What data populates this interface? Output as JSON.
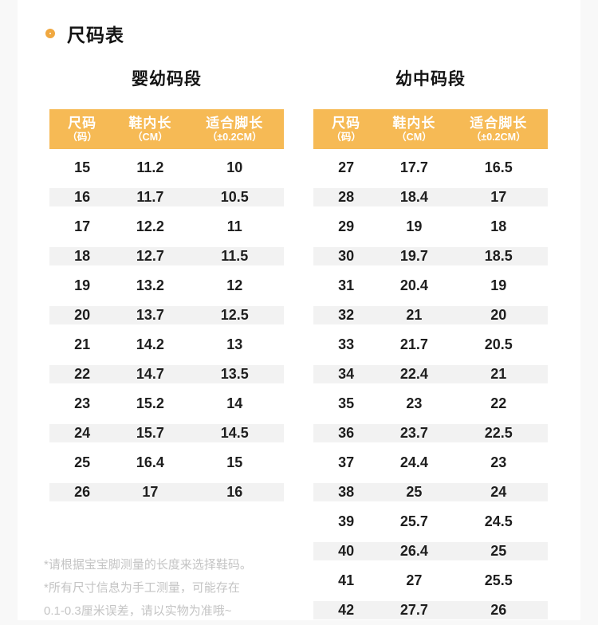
{
  "header": {
    "title": "尺码表"
  },
  "tables": [
    {
      "title": "婴幼码段",
      "columns": [
        {
          "label": "尺码",
          "sub": "（码）"
        },
        {
          "label": "鞋内长",
          "sub": "（CM）"
        },
        {
          "label": "适合脚长",
          "sub": "（±0.2CM）"
        }
      ],
      "rows": [
        [
          "15",
          "11.2",
          "10"
        ],
        [
          "16",
          "11.7",
          "10.5"
        ],
        [
          "17",
          "12.2",
          "11"
        ],
        [
          "18",
          "12.7",
          "11.5"
        ],
        [
          "19",
          "13.2",
          "12"
        ],
        [
          "20",
          "13.7",
          "12.5"
        ],
        [
          "21",
          "14.2",
          "13"
        ],
        [
          "22",
          "14.7",
          "13.5"
        ],
        [
          "23",
          "15.2",
          "14"
        ],
        [
          "24",
          "15.7",
          "14.5"
        ],
        [
          "25",
          "16.4",
          "15"
        ],
        [
          "26",
          "17",
          "16"
        ]
      ]
    },
    {
      "title": "幼中码段",
      "columns": [
        {
          "label": "尺码",
          "sub": "（码）"
        },
        {
          "label": "鞋内长",
          "sub": "（CM）"
        },
        {
          "label": "适合脚长",
          "sub": "（±0.2CM）"
        }
      ],
      "rows": [
        [
          "27",
          "17.7",
          "16.5"
        ],
        [
          "28",
          "18.4",
          "17"
        ],
        [
          "29",
          "19",
          "18"
        ],
        [
          "30",
          "19.7",
          "18.5"
        ],
        [
          "31",
          "20.4",
          "19"
        ],
        [
          "32",
          "21",
          "20"
        ],
        [
          "33",
          "21.7",
          "20.5"
        ],
        [
          "34",
          "22.4",
          "21"
        ],
        [
          "35",
          "23",
          "22"
        ],
        [
          "36",
          "23.7",
          "22.5"
        ],
        [
          "37",
          "24.4",
          "23"
        ],
        [
          "38",
          "25",
          "24"
        ],
        [
          "39",
          "25.7",
          "24.5"
        ],
        [
          "40",
          "26.4",
          "25"
        ],
        [
          "41",
          "27",
          "25.5"
        ],
        [
          "42",
          "27.7",
          "26"
        ]
      ]
    }
  ],
  "notes": [
    "*请根据宝宝脚测量的长度来选择鞋码。",
    "*所有尺寸信息为手工测量，可能存在",
    "0.1-0.3厘米误差，请以实物为准哦~"
  ],
  "colors": {
    "accent": "#F0A840",
    "table_header_bg": "#F6BA55",
    "row_alt_bg": "#f2f2f2",
    "note_text": "#c4c4c4"
  }
}
